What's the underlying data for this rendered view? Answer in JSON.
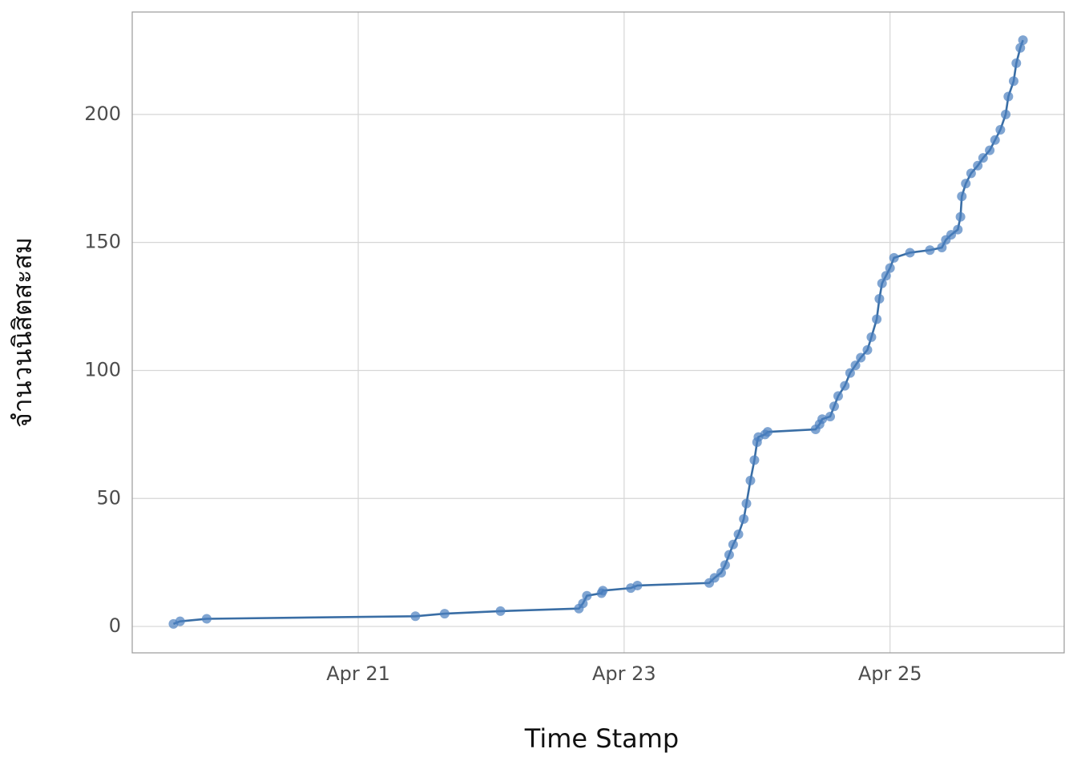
{
  "chart_data": {
    "type": "line",
    "x_label": "Time Stamp",
    "y_label": "จำนวนนิสิตสะสม",
    "series": [
      {
        "color": "#3a6ea5",
        "x": [
          19.61,
          19.66,
          19.86,
          21.43,
          21.65,
          22.07,
          22.66,
          22.69,
          22.72,
          22.83,
          22.84,
          23.05,
          23.1,
          23.64,
          23.68,
          23.73,
          23.76,
          23.79,
          23.82,
          23.86,
          23.9,
          23.92,
          23.95,
          23.98,
          24.0,
          24.01,
          24.06,
          24.08,
          24.44,
          24.47,
          24.49,
          24.55,
          24.58,
          24.61,
          24.66,
          24.7,
          24.74,
          24.78,
          24.83,
          24.86,
          24.9,
          24.92,
          24.94,
          24.97,
          25.0,
          25.03,
          25.15,
          25.3,
          25.39,
          25.42,
          25.46,
          25.51,
          25.53,
          25.54,
          25.57,
          25.61,
          25.66,
          25.7,
          25.75,
          25.79,
          25.83,
          25.87,
          25.89,
          25.93,
          25.95,
          25.98,
          26.0
        ],
        "values": [
          1,
          2,
          3,
          4,
          5,
          6,
          7,
          9,
          12,
          13,
          14,
          15,
          16,
          17,
          19,
          21,
          24,
          28,
          32,
          36,
          42,
          48,
          57,
          65,
          72,
          74,
          75,
          76,
          77,
          79,
          81,
          82,
          86,
          90,
          94,
          99,
          102,
          105,
          108,
          113,
          120,
          128,
          134,
          137,
          140,
          144,
          146,
          147,
          148,
          151,
          153,
          155,
          160,
          168,
          173,
          177,
          180,
          183,
          186,
          190,
          194,
          200,
          207,
          213,
          220,
          226,
          229
        ]
      }
    ],
    "marker_color": "#4a7fbf",
    "xlim": [
      19.3,
      26.31
    ],
    "xticks": [
      {
        "value": 21,
        "label": "Apr 21"
      },
      {
        "value": 23,
        "label": "Apr 23"
      },
      {
        "value": 25,
        "label": "Apr 25"
      }
    ],
    "ylim": [
      -10.3,
      240
    ],
    "yticks": [
      0,
      50,
      100,
      150,
      200
    ],
    "grid": true
  }
}
